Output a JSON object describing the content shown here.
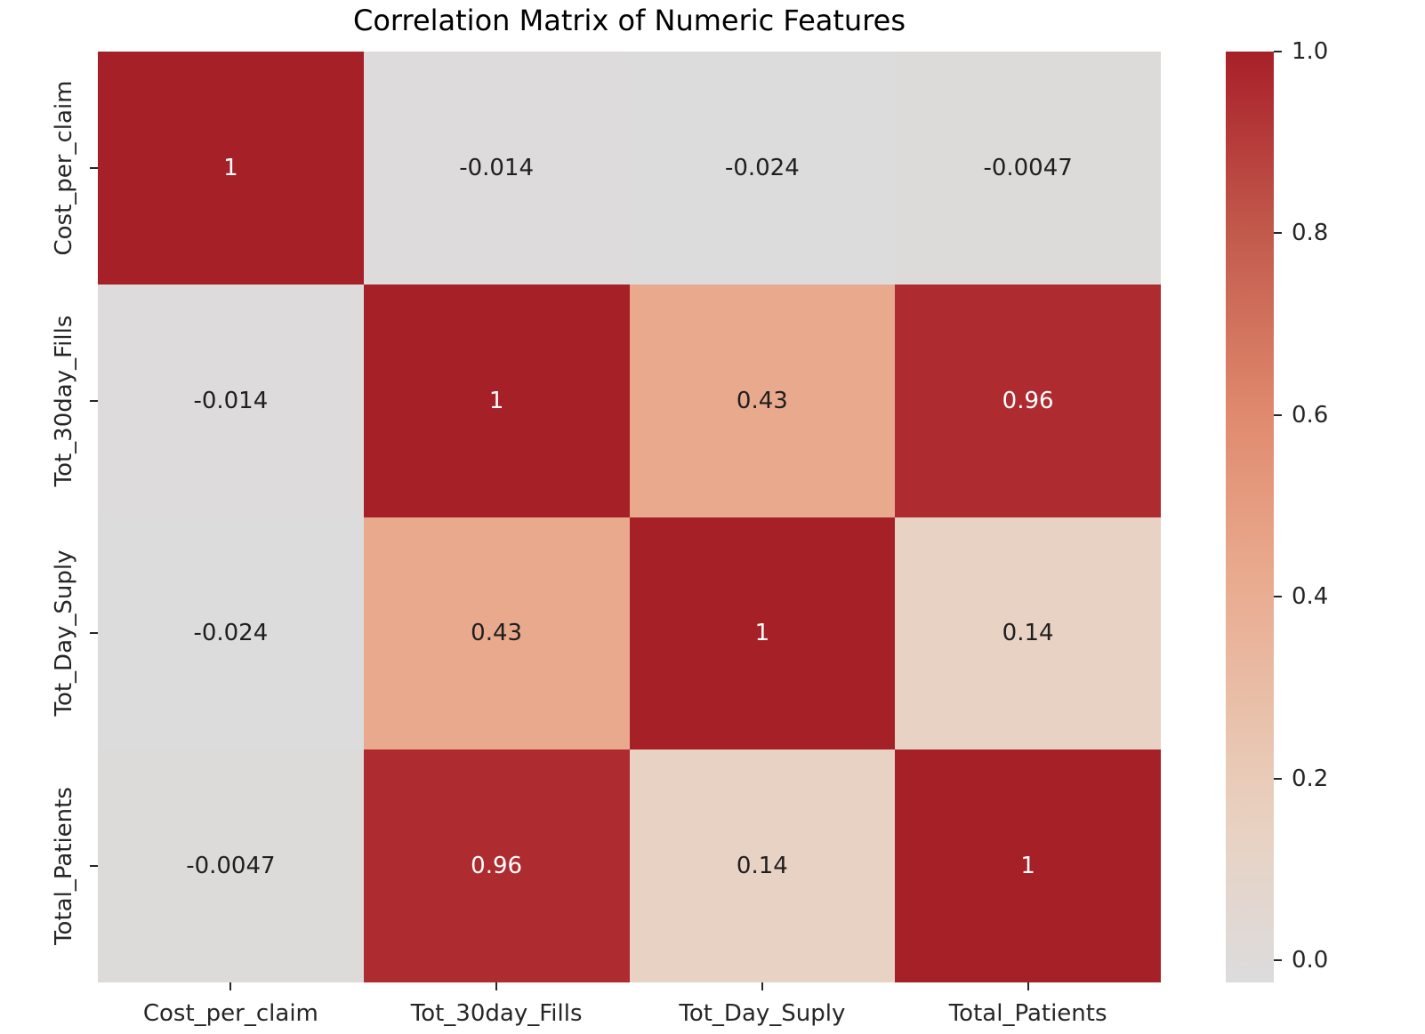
{
  "chart_data": {
    "type": "heatmap",
    "title": "Correlation Matrix of Numeric Features",
    "features": [
      "Cost_per_claim",
      "Tot_30day_Fills",
      "Tot_Day_Suply",
      "Total_Patients"
    ],
    "matrix": [
      [
        1,
        -0.014,
        -0.024,
        -0.0047
      ],
      [
        -0.014,
        1,
        0.43,
        0.96
      ],
      [
        -0.024,
        0.43,
        1,
        0.14
      ],
      [
        -0.0047,
        0.96,
        0.14,
        1
      ]
    ],
    "cell_labels": [
      [
        "1",
        "-0.014",
        "-0.024",
        "-0.0047"
      ],
      [
        "-0.014",
        "1",
        "0.43",
        "0.96"
      ],
      [
        "-0.024",
        "0.43",
        "1",
        "0.14"
      ],
      [
        "-0.0047",
        "0.96",
        "0.14",
        "1"
      ]
    ],
    "vmin": -0.024,
    "vmax": 1.0,
    "colorbar": {
      "tick_labels": [
        "1.0",
        "0.8",
        "0.6",
        "0.4",
        "0.2",
        "0.0"
      ],
      "tick_values": [
        1.0,
        0.8,
        0.6,
        0.4,
        0.2,
        0.0
      ]
    },
    "colormap_stops": [
      {
        "value": -0.024,
        "color": "#dcdcdd"
      },
      {
        "value": 0.14,
        "color": "#e8d2c3"
      },
      {
        "value": 0.2,
        "color": "#e9cbb8"
      },
      {
        "value": 0.43,
        "color": "#e9a98d"
      },
      {
        "value": 0.6,
        "color": "#e08a6e"
      },
      {
        "value": 0.8,
        "color": "#c25a4c"
      },
      {
        "value": 0.96,
        "color": "#ae2b30"
      },
      {
        "value": 1.0,
        "color": "#a62028"
      }
    ],
    "annotation_text_colors": {
      "light": "#ffffff",
      "dark": "#1f1f1f"
    },
    "grid": false,
    "legend_position": "right-colorbar"
  }
}
